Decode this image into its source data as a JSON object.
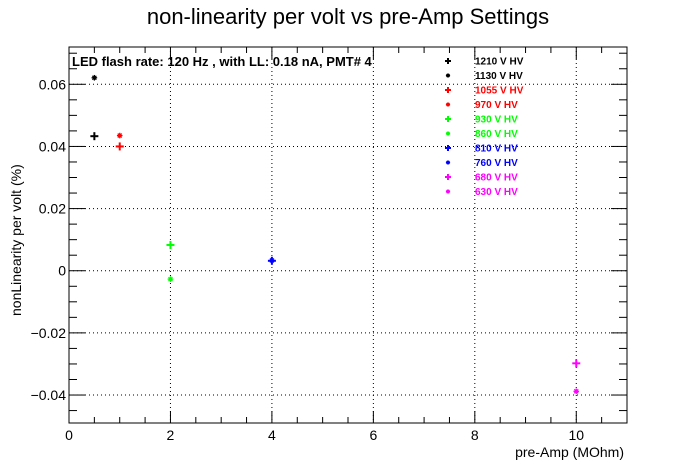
{
  "chart_data": {
    "type": "scatter",
    "title": "non-linearity per volt vs pre-Amp Settings",
    "xlabel": "pre-Amp (MOhm)",
    "ylabel": "nonLinearity per volt (%)",
    "annotation": "LED flash rate: 120 Hz , with LL: 0.18 nA, PMT# 4",
    "xlim": [
      0,
      11
    ],
    "ylim": [
      -0.049,
      0.072
    ],
    "x_ticks": [
      0,
      2,
      4,
      6,
      8,
      10
    ],
    "x_tick_labels": [
      "0",
      "2",
      "4",
      "6",
      "8",
      "10"
    ],
    "y_ticks": [
      -0.04,
      -0.02,
      0,
      0.02,
      0.04,
      0.06
    ],
    "y_tick_labels": [
      "−0.04",
      "−0.02",
      "0",
      "0.02",
      "0.04",
      "0.06"
    ],
    "grid": true,
    "legend_position": "top-right",
    "series": [
      {
        "name": "1210 V HV",
        "marker": "plus",
        "color": "#000000",
        "points": [
          [
            0.5,
            0.0433
          ]
        ]
      },
      {
        "name": "1130 V HV",
        "marker": "star",
        "color": "#000000",
        "points": [
          [
            0.5,
            0.0621
          ]
        ]
      },
      {
        "name": "1055 V HV",
        "marker": "plus",
        "color": "#ff0000",
        "points": [
          [
            1,
            0.04
          ]
        ]
      },
      {
        "name": "970 V HV",
        "marker": "star",
        "color": "#ff0000",
        "points": [
          [
            1,
            0.0435
          ]
        ]
      },
      {
        "name": "930 V HV",
        "marker": "plus",
        "color": "#00ff00",
        "points": [
          [
            2,
            0.0083
          ]
        ]
      },
      {
        "name": "860 V HV",
        "marker": "star",
        "color": "#00ff00",
        "points": [
          [
            2,
            -0.0027
          ]
        ]
      },
      {
        "name": "810 V HV",
        "marker": "plus",
        "color": "#0000ff",
        "points": [
          [
            4,
            0.0032
          ]
        ]
      },
      {
        "name": "760 V HV",
        "marker": "star",
        "color": "#0000ff",
        "points": [
          [
            4,
            0.0033
          ]
        ]
      },
      {
        "name": "680 V HV",
        "marker": "plus",
        "color": "#ff00ff",
        "points": [
          [
            10,
            -0.0298
          ]
        ]
      },
      {
        "name": "630 V HV",
        "marker": "star",
        "color": "#ff00ff",
        "points": [
          [
            10,
            -0.0388
          ]
        ]
      }
    ]
  }
}
